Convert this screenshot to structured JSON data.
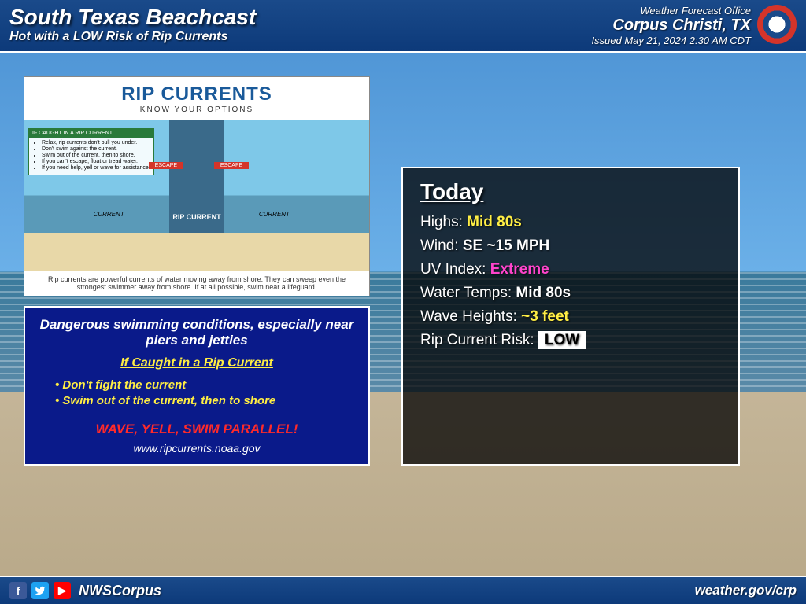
{
  "header": {
    "title": "South Texas Beachcast",
    "subtitle": "Hot with a LOW Risk of Rip Currents",
    "office_label": "Weather Forecast Office",
    "office_name": "Corpus Christi, TX",
    "issued": "Issued May 21, 2024 2:30 AM CDT"
  },
  "rip_diagram": {
    "title": "RIP CURRENTS",
    "subtitle": "KNOW YOUR OPTIONS",
    "tips_header": "IF CAUGHT IN A RIP CURRENT",
    "tips": [
      "Relax, rip currents don't pull you under.",
      "Don't swim against the current.",
      "Swim out of the current, then to shore.",
      "If you can't escape, float or tread water.",
      "If you need help, yell or wave for assistance."
    ],
    "escape_left": "ESCAPE",
    "escape_right": "ESCAPE",
    "current_left": "CURRENT",
    "current_right": "CURRENT",
    "main_label": "RIP CURRENT",
    "explanation": "Rip currents are powerful currents of water moving away from shore. They can sweep even the strongest swimmer away from shore. If at all possible, swim near a lifeguard."
  },
  "warning": {
    "headline": "Dangerous swimming conditions, especially near piers and jetties",
    "sub": "If Caught in a Rip Current",
    "b1": "• Don't fight the current",
    "b2": "• Swim out of the current, then to shore",
    "action": "WAVE, YELL, SWIM PARALLEL!",
    "url": "www.ripcurrents.noaa.gov"
  },
  "today": {
    "title": "Today",
    "rows": [
      {
        "label": "Highs:",
        "value": "Mid 80s",
        "cls": "val-yellow"
      },
      {
        "label": "Wind:",
        "value": "SE ~15 MPH",
        "cls": "val-white"
      },
      {
        "label": "UV Index:",
        "value": "Extreme",
        "cls": "val-magenta"
      },
      {
        "label": "Water Temps:",
        "value": "Mid 80s",
        "cls": "val-white"
      },
      {
        "label": "Wave Heights:",
        "value": "~3 feet",
        "cls": "val-yellow"
      },
      {
        "label": "Rip Current Risk:",
        "value": "LOW",
        "cls": "val-box"
      }
    ]
  },
  "footer": {
    "handle": "NWSCorpus",
    "url": "weather.gov/crp"
  }
}
